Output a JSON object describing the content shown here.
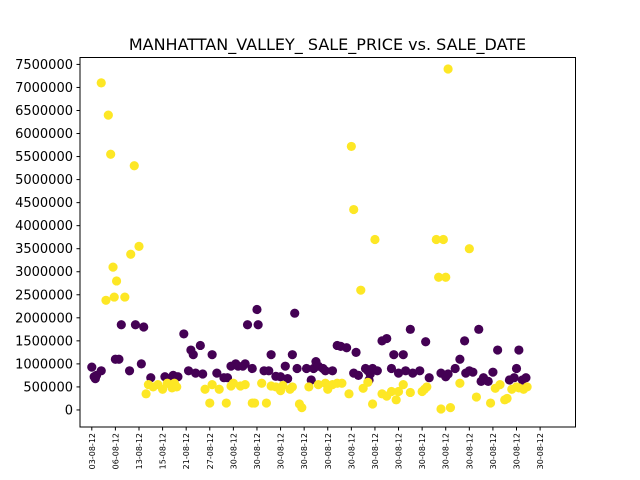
{
  "chart_data": {
    "type": "scatter",
    "title": "MANHATTAN_VALLEY_ SALE_PRICE vs. SALE_DATE",
    "xlabel": "",
    "ylabel": "",
    "x_tick_labels": [
      "03-08-12",
      "06-08-12",
      "13-08-12",
      "15-08-12",
      "21-08-12",
      "27-08-12",
      "30-08-12",
      "30-08-12",
      "30-08-12",
      "30-08-12",
      "30-08-12",
      "30-08-12",
      "30-08-12",
      "30-08-12",
      "30-08-12",
      "30-08-12",
      "30-08-12",
      "30-08-12",
      "30-08-12",
      "30-08-12"
    ],
    "y_ticks": [
      0,
      500000,
      1000000,
      1500000,
      2000000,
      2500000,
      3000000,
      3500000,
      4000000,
      4500000,
      5000000,
      5500000,
      6000000,
      6500000,
      7000000,
      7500000
    ],
    "y_tick_labels": [
      "0",
      "500000",
      "1000000",
      "1500000",
      "2000000",
      "2500000",
      "3000000",
      "3500000",
      "4000000",
      "4500000",
      "5000000",
      "5500000",
      "6000000",
      "6500000",
      "7000000",
      "7500000"
    ],
    "xlim": [
      -0.5,
      20.5
    ],
    "ylim": [
      -370000,
      7650000
    ],
    "grid": false,
    "colors": {
      "group_a": "#440154",
      "group_b": "#fde725"
    },
    "series": [
      {
        "color_key": "group_a",
        "points": [
          [
            0.0,
            930000
          ],
          [
            0.1,
            720000
          ],
          [
            0.15,
            680000
          ],
          [
            0.2,
            750000
          ],
          [
            0.4,
            850000
          ],
          [
            1.0,
            1100000
          ],
          [
            1.15,
            1100000
          ],
          [
            1.25,
            1850000
          ],
          [
            1.6,
            850000
          ],
          [
            1.85,
            1850000
          ],
          [
            2.1,
            1000000
          ],
          [
            2.2,
            1800000
          ],
          [
            2.5,
            700000
          ],
          [
            3.1,
            720000
          ],
          [
            3.3,
            680000
          ],
          [
            3.45,
            750000
          ],
          [
            3.65,
            720000
          ],
          [
            3.9,
            1650000
          ],
          [
            4.1,
            850000
          ],
          [
            4.2,
            1300000
          ],
          [
            4.3,
            1200000
          ],
          [
            4.4,
            800000
          ],
          [
            4.6,
            1400000
          ],
          [
            4.7,
            780000
          ],
          [
            5.1,
            1200000
          ],
          [
            5.3,
            800000
          ],
          [
            5.6,
            700000
          ],
          [
            5.75,
            700000
          ],
          [
            5.9,
            950000
          ],
          [
            6.1,
            1000000
          ],
          [
            6.2,
            950000
          ],
          [
            6.4,
            950000
          ],
          [
            6.5,
            1000000
          ],
          [
            6.6,
            1850000
          ],
          [
            6.8,
            900000
          ],
          [
            7.0,
            2180000
          ],
          [
            7.05,
            1850000
          ],
          [
            7.3,
            850000
          ],
          [
            7.5,
            850000
          ],
          [
            7.6,
            1200000
          ],
          [
            7.8,
            730000
          ],
          [
            8.0,
            720000
          ],
          [
            8.2,
            950000
          ],
          [
            8.3,
            680000
          ],
          [
            8.5,
            1200000
          ],
          [
            8.6,
            2100000
          ],
          [
            8.7,
            900000
          ],
          [
            9.1,
            900000
          ],
          [
            9.3,
            650000
          ],
          [
            9.4,
            900000
          ],
          [
            9.5,
            1050000
          ],
          [
            9.6,
            950000
          ],
          [
            9.8,
            900000
          ],
          [
            9.9,
            850000
          ],
          [
            10.2,
            850000
          ],
          [
            10.4,
            1400000
          ],
          [
            10.55,
            1380000
          ],
          [
            10.8,
            1350000
          ],
          [
            11.1,
            800000
          ],
          [
            11.2,
            1250000
          ],
          [
            11.3,
            750000
          ],
          [
            11.6,
            900000
          ],
          [
            11.7,
            850000
          ],
          [
            11.75,
            650000
          ],
          [
            11.8,
            780000
          ],
          [
            11.9,
            900000
          ],
          [
            12.1,
            850000
          ],
          [
            12.3,
            1500000
          ],
          [
            12.5,
            1550000
          ],
          [
            12.7,
            900000
          ],
          [
            12.8,
            1200000
          ],
          [
            13.0,
            800000
          ],
          [
            13.2,
            1200000
          ],
          [
            13.3,
            850000
          ],
          [
            13.5,
            1750000
          ],
          [
            13.6,
            800000
          ],
          [
            13.9,
            850000
          ],
          [
            14.15,
            1480000
          ],
          [
            14.3,
            700000
          ],
          [
            14.8,
            800000
          ],
          [
            15.0,
            720000
          ],
          [
            15.1,
            780000
          ],
          [
            15.4,
            900000
          ],
          [
            15.6,
            1100000
          ],
          [
            15.8,
            1500000
          ],
          [
            15.85,
            800000
          ],
          [
            16.0,
            850000
          ],
          [
            16.15,
            820000
          ],
          [
            16.4,
            1750000
          ],
          [
            16.5,
            620000
          ],
          [
            16.6,
            700000
          ],
          [
            16.8,
            620000
          ],
          [
            17.0,
            820000
          ],
          [
            17.2,
            1300000
          ],
          [
            17.7,
            650000
          ],
          [
            17.9,
            700000
          ],
          [
            18.0,
            900000
          ],
          [
            18.1,
            1300000
          ],
          [
            18.25,
            650000
          ],
          [
            18.4,
            700000
          ]
        ]
      },
      {
        "color_key": "group_b",
        "points": [
          [
            0.4,
            7100000
          ],
          [
            0.7,
            6400000
          ],
          [
            0.8,
            5550000
          ],
          [
            0.9,
            3100000
          ],
          [
            1.05,
            2800000
          ],
          [
            0.6,
            2380000
          ],
          [
            0.95,
            2450000
          ],
          [
            1.4,
            2450000
          ],
          [
            1.65,
            3380000
          ],
          [
            1.8,
            5300000
          ],
          [
            2.0,
            3550000
          ],
          [
            2.3,
            350000
          ],
          [
            2.4,
            550000
          ],
          [
            2.6,
            500000
          ],
          [
            2.8,
            550000
          ],
          [
            3.0,
            450000
          ],
          [
            3.2,
            580000
          ],
          [
            3.4,
            480000
          ],
          [
            3.5,
            580000
          ],
          [
            3.6,
            500000
          ],
          [
            4.8,
            450000
          ],
          [
            5.0,
            150000
          ],
          [
            5.1,
            550000
          ],
          [
            5.4,
            450000
          ],
          [
            5.7,
            150000
          ],
          [
            5.9,
            520000
          ],
          [
            6.0,
            580000
          ],
          [
            6.3,
            520000
          ],
          [
            6.5,
            550000
          ],
          [
            6.8,
            150000
          ],
          [
            6.9,
            150000
          ],
          [
            7.2,
            580000
          ],
          [
            7.4,
            150000
          ],
          [
            7.6,
            520000
          ],
          [
            7.8,
            500000
          ],
          [
            8.0,
            420000
          ],
          [
            8.1,
            530000
          ],
          [
            8.4,
            450000
          ],
          [
            8.5,
            500000
          ],
          [
            8.8,
            130000
          ],
          [
            8.9,
            50000
          ],
          [
            9.2,
            500000
          ],
          [
            9.6,
            550000
          ],
          [
            9.9,
            580000
          ],
          [
            10.0,
            450000
          ],
          [
            10.2,
            550000
          ],
          [
            10.4,
            580000
          ],
          [
            10.6,
            580000
          ],
          [
            11.0,
            5720000
          ],
          [
            11.1,
            4350000
          ],
          [
            11.4,
            2600000
          ],
          [
            10.9,
            350000
          ],
          [
            11.5,
            470000
          ],
          [
            11.7,
            600000
          ],
          [
            11.9,
            130000
          ],
          [
            12.0,
            3700000
          ],
          [
            12.3,
            350000
          ],
          [
            12.5,
            300000
          ],
          [
            12.7,
            400000
          ],
          [
            12.9,
            220000
          ],
          [
            13.0,
            400000
          ],
          [
            13.2,
            550000
          ],
          [
            13.5,
            380000
          ],
          [
            14.0,
            400000
          ],
          [
            14.1,
            450000
          ],
          [
            14.2,
            500000
          ],
          [
            14.6,
            3700000
          ],
          [
            14.7,
            2880000
          ],
          [
            14.9,
            3700000
          ],
          [
            15.0,
            2880000
          ],
          [
            15.1,
            7400000
          ],
          [
            14.8,
            20000
          ],
          [
            15.2,
            50000
          ],
          [
            15.6,
            580000
          ],
          [
            16.0,
            3500000
          ],
          [
            16.3,
            280000
          ],
          [
            16.9,
            150000
          ],
          [
            17.1,
            470000
          ],
          [
            17.3,
            550000
          ],
          [
            17.5,
            220000
          ],
          [
            17.6,
            250000
          ],
          [
            17.8,
            450000
          ],
          [
            18.0,
            500000
          ],
          [
            18.1,
            480000
          ],
          [
            18.3,
            450000
          ],
          [
            18.45,
            500000
          ]
        ]
      }
    ]
  }
}
